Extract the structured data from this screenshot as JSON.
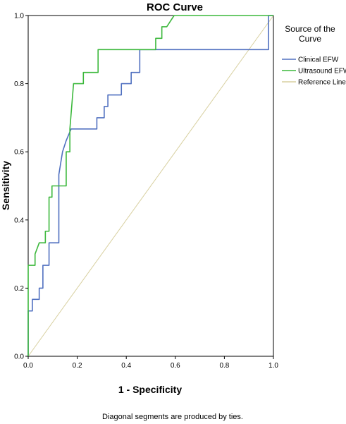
{
  "chart_data": {
    "type": "line",
    "title": "ROC Curve",
    "xlabel": "1 - Specificity",
    "ylabel": "Sensitivity",
    "xlim": [
      0,
      1
    ],
    "ylim": [
      0,
      1
    ],
    "x_ticks": [
      "0.0",
      "0.2",
      "0.4",
      "0.6",
      "0.8",
      "1.0"
    ],
    "y_ticks": [
      "0.0",
      "0.2",
      "0.4",
      "0.6",
      "0.8",
      "1.0"
    ],
    "grid": false,
    "legend": {
      "title_lines": [
        "Source of the",
        "Curve"
      ],
      "placement": "right"
    },
    "series": [
      {
        "name": "Clinical EFW",
        "color": "#5070c0",
        "points": [
          [
            0,
            0
          ],
          [
            0,
            0.133
          ],
          [
            0.017,
            0.133
          ],
          [
            0.017,
            0.167
          ],
          [
            0.045,
            0.167
          ],
          [
            0.045,
            0.2
          ],
          [
            0.06,
            0.2
          ],
          [
            0.06,
            0.267
          ],
          [
            0.085,
            0.267
          ],
          [
            0.085,
            0.333
          ],
          [
            0.125,
            0.333
          ],
          [
            0.125,
            0.533
          ],
          [
            0.14,
            0.6
          ],
          [
            0.155,
            0.633
          ],
          [
            0.175,
            0.667
          ],
          [
            0.28,
            0.667
          ],
          [
            0.28,
            0.7
          ],
          [
            0.31,
            0.7
          ],
          [
            0.31,
            0.733
          ],
          [
            0.325,
            0.733
          ],
          [
            0.325,
            0.767
          ],
          [
            0.38,
            0.767
          ],
          [
            0.38,
            0.8
          ],
          [
            0.42,
            0.8
          ],
          [
            0.42,
            0.833
          ],
          [
            0.455,
            0.833
          ],
          [
            0.455,
            0.9
          ],
          [
            0.98,
            0.9
          ],
          [
            0.98,
            1.0
          ],
          [
            1.0,
            1.0
          ]
        ]
      },
      {
        "name": "Ultrasound EFW",
        "color": "#3cb83c",
        "points": [
          [
            0,
            0
          ],
          [
            0,
            0.267
          ],
          [
            0.028,
            0.267
          ],
          [
            0.028,
            0.3
          ],
          [
            0.045,
            0.333
          ],
          [
            0.07,
            0.333
          ],
          [
            0.07,
            0.367
          ],
          [
            0.085,
            0.367
          ],
          [
            0.085,
            0.467
          ],
          [
            0.097,
            0.467
          ],
          [
            0.097,
            0.5
          ],
          [
            0.155,
            0.5
          ],
          [
            0.155,
            0.6
          ],
          [
            0.17,
            0.6
          ],
          [
            0.17,
            0.667
          ],
          [
            0.185,
            0.8
          ],
          [
            0.225,
            0.8
          ],
          [
            0.225,
            0.833
          ],
          [
            0.285,
            0.833
          ],
          [
            0.285,
            0.9
          ],
          [
            0.52,
            0.9
          ],
          [
            0.52,
            0.933
          ],
          [
            0.545,
            0.933
          ],
          [
            0.545,
            0.967
          ],
          [
            0.565,
            0.967
          ],
          [
            0.595,
            1.0
          ],
          [
            1.0,
            1.0
          ]
        ]
      },
      {
        "name": "Reference Line",
        "color": "#d8d0a0",
        "points": [
          [
            0,
            0
          ],
          [
            1,
            1
          ]
        ]
      }
    ],
    "footnote": "Diagonal segments are produced by ties."
  }
}
